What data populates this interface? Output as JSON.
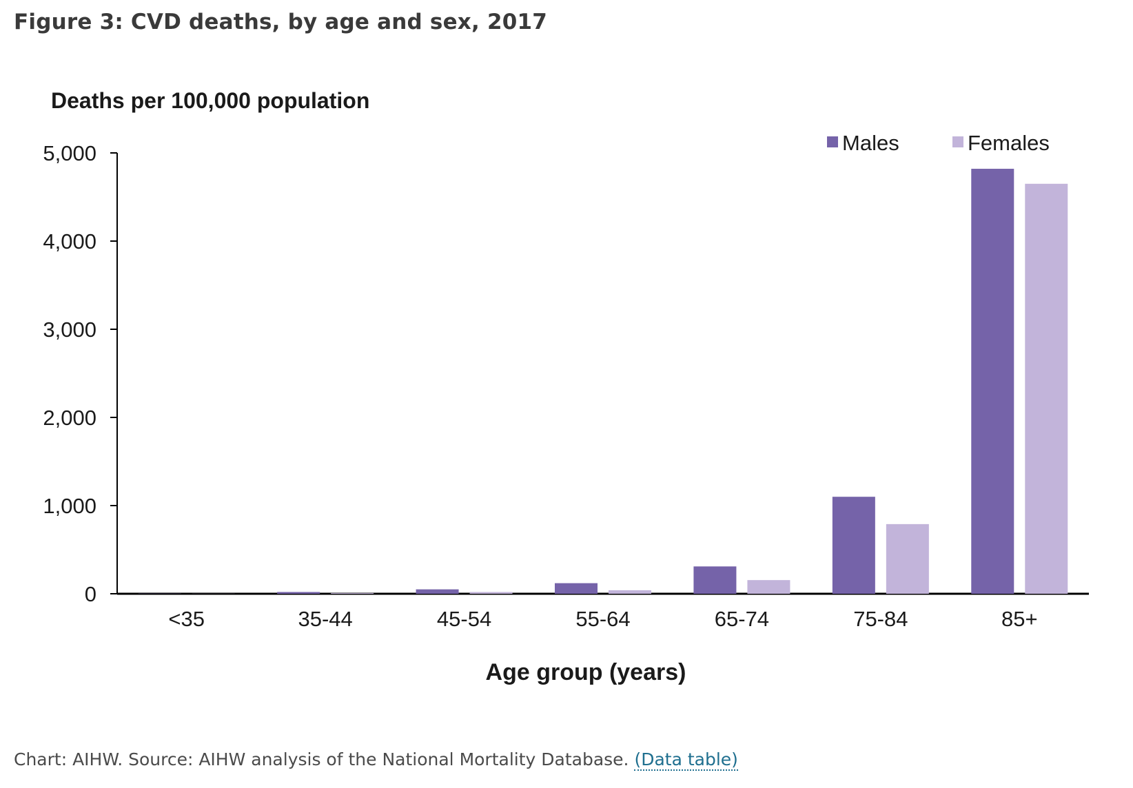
{
  "figure": {
    "title": "Figure 3: CVD deaths, by age and sex, 2017",
    "caption": "Chart: AIHW. Source: AIHW analysis of the National Mortality Database.",
    "data_table_link": "(Data table)"
  },
  "colors": {
    "males": "#7563a9",
    "females": "#c2b4da",
    "axis": "#000000",
    "text": "#1a1a1a"
  },
  "chart_data": {
    "type": "bar",
    "ylabel": "Deaths per 100,000 population",
    "xlabel": "Age group (years)",
    "categories": [
      "<35",
      "35-44",
      "45-54",
      "55-64",
      "65-74",
      "75-84",
      "85+"
    ],
    "series": [
      {
        "name": "Males",
        "values": [
          2,
          20,
          50,
          120,
          310,
          1100,
          4820
        ]
      },
      {
        "name": "Females",
        "values": [
          1,
          8,
          20,
          40,
          155,
          790,
          4650
        ]
      }
    ],
    "ylim": [
      0,
      5000
    ],
    "yticks": [
      0,
      1000,
      2000,
      3000,
      4000,
      5000
    ],
    "ytick_labels": [
      "0",
      "1,000",
      "2,000",
      "3,000",
      "4,000",
      "5,000"
    ],
    "legend": "top-right",
    "grid": false
  }
}
